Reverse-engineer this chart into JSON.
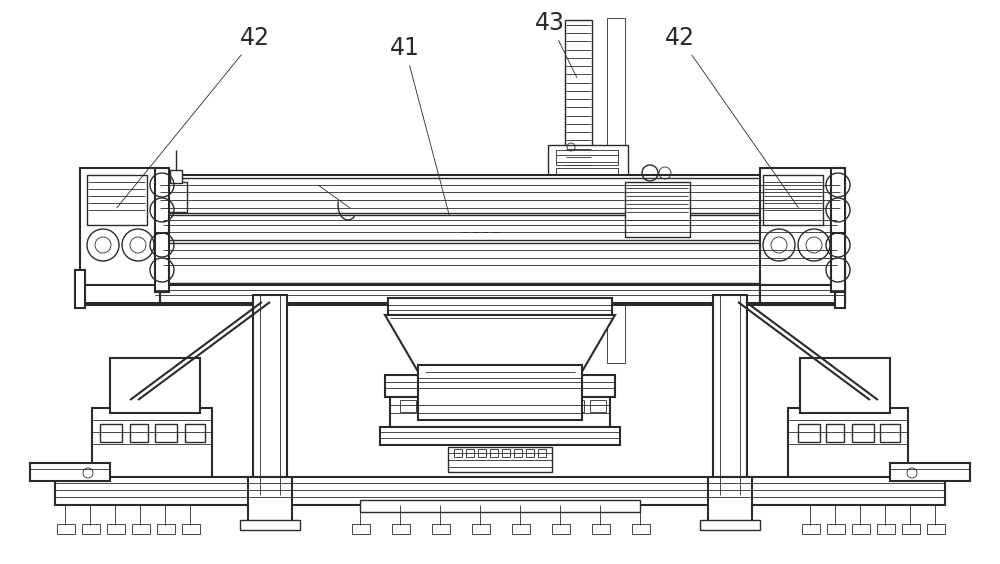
{
  "bg_color": "#ffffff",
  "line_color": "#2a2a2a",
  "label_color": "#2a2a2a",
  "label_font_size": 17,
  "lw_thin": 0.6,
  "lw_med": 1.0,
  "lw_thick": 1.5,
  "lw_heavy": 2.0,
  "figw": 10.0,
  "figh": 5.64,
  "dpi": 100
}
